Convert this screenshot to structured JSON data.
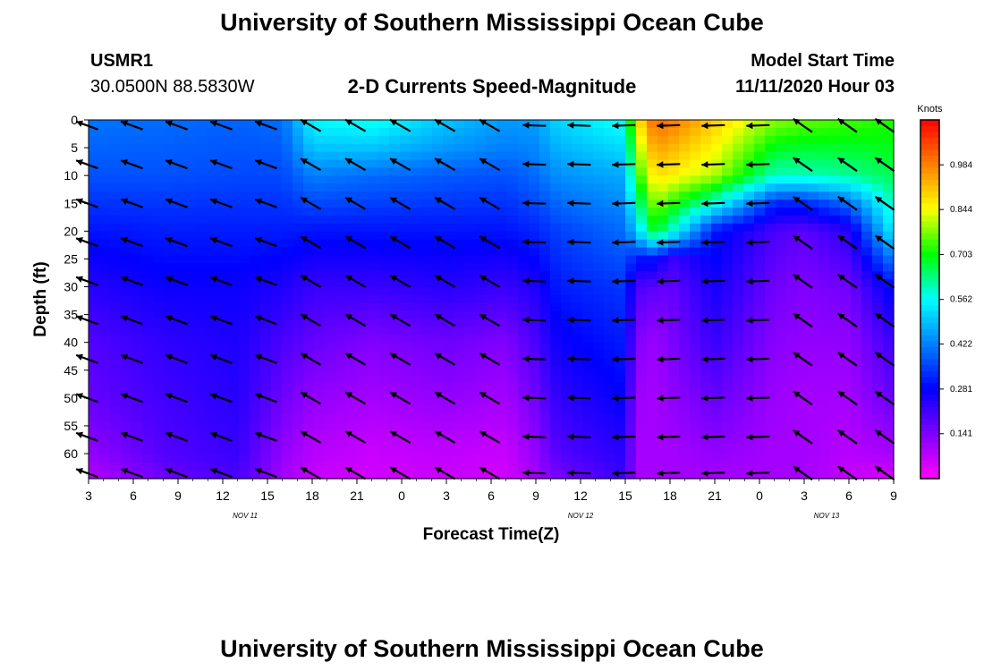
{
  "header": {
    "title": "University of Southern Mississippi Ocean Cube",
    "station_id": "USMR1",
    "coords": "30.0500N 88.5830W",
    "chart_title": "2-D Currents Speed-Magnitude",
    "model_start_label": "Model Start Time",
    "model_start_value": "11/11/2020 Hour 03"
  },
  "footer": {
    "title": "University of Southern Mississippi Ocean Cube"
  },
  "chart_data": {
    "type": "heatmap",
    "title": "2-D Currents Speed-Magnitude",
    "xlabel": "Forecast Time(Z)",
    "ylabel": "Depth (ft)",
    "x_tick_labels": [
      "3",
      "6",
      "9",
      "12",
      "15",
      "18",
      "21",
      "0",
      "3",
      "6",
      "9",
      "12",
      "15",
      "18",
      "21",
      "0",
      "3",
      "6",
      "9"
    ],
    "x_hours": [
      0,
      3,
      6,
      9,
      12,
      15,
      18,
      21,
      24,
      27,
      30,
      33,
      36,
      39,
      42,
      45,
      48,
      51,
      54
    ],
    "date_labels": [
      {
        "label": "NOV 11",
        "hour": 10.5
      },
      {
        "label": "NOV 12",
        "hour": 33
      },
      {
        "label": "NOV 13",
        "hour": 49.5
      }
    ],
    "y_ticks": [
      0,
      5,
      10,
      15,
      20,
      25,
      30,
      35,
      40,
      45,
      50,
      55,
      60
    ],
    "ylim": [
      0,
      64.5
    ],
    "colorbar": {
      "title": "Knots",
      "labels": [
        "0.984",
        "0.844",
        "0.703",
        "0.562",
        "0.422",
        "0.281",
        "0.141"
      ],
      "values": [
        0.984,
        0.844,
        0.703,
        0.562,
        0.422,
        0.281,
        0.141
      ],
      "min": 0.0,
      "max": 1.125
    },
    "colors": {
      "c0": "#ff00ff",
      "c1": "#8000ff",
      "c2": "#0000ff",
      "c3": "#0080ff",
      "c4": "#00ffff",
      "c5": "#00ff00",
      "c6": "#ffff00",
      "c7": "#ff8000",
      "c8": "#ff0000"
    },
    "arrow_hours": [
      0.5,
      3.5,
      6.5,
      9.5,
      12.5,
      15.5,
      18.5,
      21.5,
      24.5,
      27.5,
      30.5,
      33.5,
      36.5,
      39.5,
      42.5,
      45.5,
      48.5,
      51.5,
      54
    ],
    "arrow_depths": [
      1,
      8,
      15,
      22,
      29,
      36,
      43,
      50,
      57,
      63.5
    ],
    "speed_profiles": [
      {
        "hour": 0,
        "depths": [
          0,
          10,
          20,
          30,
          40,
          50,
          60,
          64.5
        ],
        "speeds": [
          0.41,
          0.37,
          0.3,
          0.24,
          0.19,
          0.17,
          0.12,
          0.08
        ]
      },
      {
        "hour": 5,
        "depths": [
          0,
          10,
          20,
          30,
          40,
          50,
          60,
          64.5
        ],
        "speeds": [
          0.4,
          0.37,
          0.31,
          0.27,
          0.23,
          0.21,
          0.19,
          0.16
        ]
      },
      {
        "hour": 10,
        "depths": [
          0,
          10,
          20,
          30,
          40,
          50,
          60,
          64.5
        ],
        "speeds": [
          0.39,
          0.36,
          0.31,
          0.27,
          0.25,
          0.24,
          0.22,
          0.2
        ]
      },
      {
        "hour": 13,
        "depths": [
          0,
          10,
          20,
          30,
          40,
          50,
          60,
          64.5
        ],
        "speeds": [
          0.4,
          0.36,
          0.31,
          0.25,
          0.2,
          0.16,
          0.12,
          0.1
        ]
      },
      {
        "hour": 15,
        "depths": [
          0,
          5,
          10,
          20,
          30,
          40,
          50,
          60,
          64.5
        ],
        "speeds": [
          0.56,
          0.5,
          0.42,
          0.3,
          0.22,
          0.17,
          0.12,
          0.08,
          0.06
        ]
      },
      {
        "hour": 19,
        "depths": [
          0,
          5,
          10,
          20,
          30,
          40,
          50,
          60,
          64.5
        ],
        "speeds": [
          0.58,
          0.5,
          0.4,
          0.3,
          0.22,
          0.14,
          0.1,
          0.06,
          0.05
        ]
      },
      {
        "hour": 24,
        "depths": [
          0,
          5,
          10,
          20,
          30,
          40,
          50,
          60,
          64.5
        ],
        "speeds": [
          0.5,
          0.45,
          0.38,
          0.3,
          0.24,
          0.16,
          0.12,
          0.07,
          0.06
        ]
      },
      {
        "hour": 28,
        "depths": [
          0,
          5,
          10,
          20,
          30,
          40,
          50,
          60,
          64.5
        ],
        "speeds": [
          0.45,
          0.42,
          0.37,
          0.3,
          0.22,
          0.14,
          0.1,
          0.06,
          0.05
        ]
      },
      {
        "hour": 30,
        "depths": [
          0,
          10,
          20,
          30,
          40,
          50,
          60,
          64.5
        ],
        "speeds": [
          0.46,
          0.4,
          0.32,
          0.25,
          0.2,
          0.16,
          0.12,
          0.1
        ]
      },
      {
        "hour": 31.5,
        "depths": [
          0,
          10,
          20,
          30,
          40,
          50,
          60,
          64.5
        ],
        "speeds": [
          0.52,
          0.44,
          0.35,
          0.31,
          0.27,
          0.23,
          0.19,
          0.15
        ]
      },
      {
        "hour": 36,
        "depths": [
          0,
          10,
          20,
          30,
          40,
          50,
          60,
          64.5
        ],
        "speeds": [
          0.58,
          0.47,
          0.4,
          0.34,
          0.31,
          0.28,
          0.24,
          0.22
        ]
      },
      {
        "hour": 36.7,
        "depths": [
          0,
          10,
          20,
          25,
          30,
          40,
          50,
          60,
          64.5
        ],
        "speeds": [
          0.85,
          0.7,
          0.5,
          0.3,
          0.2,
          0.14,
          0.11,
          0.1,
          0.1
        ]
      },
      {
        "hour": 38,
        "depths": [
          0,
          10,
          20,
          25,
          30,
          40,
          50,
          60,
          64.5
        ],
        "speeds": [
          1.02,
          0.88,
          0.7,
          0.3,
          0.18,
          0.11,
          0.1,
          0.1,
          0.1
        ]
      },
      {
        "hour": 39,
        "depths": [
          0,
          10,
          20,
          25,
          30,
          40,
          50,
          60,
          64.5
        ],
        "speeds": [
          1.0,
          0.86,
          0.6,
          0.22,
          0.17,
          0.14,
          0.12,
          0.1,
          0.1
        ]
      },
      {
        "hour": 42,
        "depths": [
          0,
          10,
          15,
          20,
          30,
          40,
          50,
          60,
          64.5
        ],
        "speeds": [
          0.9,
          0.8,
          0.58,
          0.3,
          0.26,
          0.22,
          0.17,
          0.12,
          0.1
        ]
      },
      {
        "hour": 46,
        "depths": [
          0,
          10,
          15,
          20,
          30,
          40,
          50,
          60,
          64.5
        ],
        "speeds": [
          0.78,
          0.6,
          0.32,
          0.2,
          0.16,
          0.13,
          0.11,
          0.1,
          0.1
        ]
      },
      {
        "hour": 48,
        "depths": [
          0,
          10,
          15,
          20,
          30,
          40,
          50,
          60,
          64.5
        ],
        "speeds": [
          0.76,
          0.6,
          0.32,
          0.18,
          0.14,
          0.12,
          0.1,
          0.1,
          0.1
        ]
      },
      {
        "hour": 51,
        "depths": [
          0,
          10,
          15,
          20,
          30,
          40,
          50,
          60,
          64.5
        ],
        "speeds": [
          0.74,
          0.62,
          0.4,
          0.24,
          0.16,
          0.12,
          0.1,
          0.08,
          0.06
        ]
      },
      {
        "hour": 54,
        "depths": [
          0,
          10,
          20,
          25,
          30,
          40,
          50,
          60,
          64.5
        ],
        "speeds": [
          0.72,
          0.66,
          0.56,
          0.42,
          0.3,
          0.22,
          0.17,
          0.1,
          0.04
        ]
      }
    ]
  }
}
